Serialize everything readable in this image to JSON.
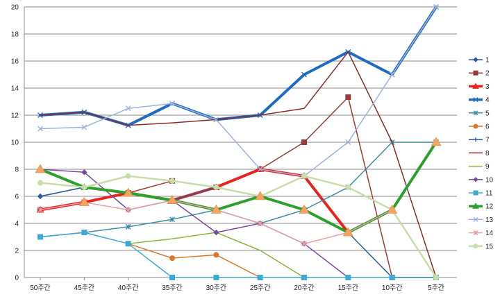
{
  "chart_data": {
    "type": "line",
    "categories": [
      "50주간",
      "45주간",
      "40주간",
      "35주간",
      "30주간",
      "25주간",
      "20주간",
      "15주간",
      "10주간",
      "5주간"
    ],
    "ylim": [
      0,
      20
    ],
    "yticks": [
      0,
      2,
      4,
      6,
      8,
      10,
      12,
      14,
      16,
      18,
      20
    ],
    "grid": true,
    "legend_position": "right",
    "series": [
      {
        "name": "1",
        "color": "#2E5C9E",
        "marker": "diamond",
        "width": 1.5,
        "values": [
          6,
          6.67,
          6.25,
          5.71,
          6.67,
          6,
          7.5,
          3.33,
          0,
          0
        ]
      },
      {
        "name": "2",
        "color": "#9B3A36",
        "marker": "square",
        "width": 1.5,
        "values": [
          5,
          5.56,
          6.25,
          7.14,
          6.67,
          8,
          10,
          13.33,
          0,
          0
        ]
      },
      {
        "name": "3",
        "color": "#E8231F",
        "marker": "triangle",
        "width": 4,
        "values": [
          5,
          5.56,
          6.25,
          5.71,
          6.67,
          8,
          7.5,
          3.33,
          null,
          null
        ]
      },
      {
        "name": "4",
        "color": "#1F6BC0",
        "marker": "x",
        "width": 4,
        "values": [
          12,
          12.22,
          11.25,
          12.86,
          11.67,
          12,
          15,
          16.67,
          15,
          20
        ]
      },
      {
        "name": "5",
        "color": "#3A8DA8",
        "marker": "star",
        "width": 1.5,
        "values": [
          3,
          3.33,
          3.75,
          4.29,
          5,
          4,
          5,
          6.67,
          10,
          10
        ]
      },
      {
        "name": "6",
        "color": "#D67A2A",
        "marker": "circle",
        "width": 1.5,
        "values": [
          null,
          null,
          2.5,
          1.43,
          1.67,
          0,
          null,
          null,
          null,
          null
        ]
      },
      {
        "name": "7",
        "color": "#2E5C9E",
        "marker": "plus",
        "width": 1.5,
        "values": [
          6,
          6.67,
          6.25,
          5.71,
          6.67,
          6,
          7.5,
          null,
          null,
          null
        ]
      },
      {
        "name": "8",
        "color": "#8B2A2A",
        "marker": "none",
        "width": 1.5,
        "values": [
          12,
          12.22,
          11.25,
          11.43,
          11.67,
          12,
          12.5,
          16.67,
          10,
          0
        ]
      },
      {
        "name": "9",
        "color": "#8DB53C",
        "marker": "none",
        "width": 1.5,
        "values": [
          null,
          null,
          2.5,
          2.86,
          3.33,
          2,
          0,
          null,
          null,
          null
        ]
      },
      {
        "name": "10",
        "color": "#7A4A9E",
        "marker": "diamond",
        "width": 1.5,
        "values": [
          8,
          7.78,
          5,
          5.71,
          3.33,
          4,
          2.5,
          0,
          null,
          null
        ]
      },
      {
        "name": "11",
        "color": "#3FA9D4",
        "marker": "square",
        "width": 1.5,
        "values": [
          3,
          3.33,
          2.5,
          0,
          0,
          0,
          0,
          0,
          0,
          0
        ]
      },
      {
        "name": "12",
        "color": "#2CA02C",
        "marker": "triangle",
        "width": 4,
        "values": [
          8,
          6.67,
          6.25,
          5.71,
          5,
          6,
          5,
          3.33,
          5,
          10
        ]
      },
      {
        "name": "13",
        "color": "#9DB4DC",
        "marker": "x",
        "width": 1.5,
        "values": [
          11,
          11.11,
          12.5,
          12.86,
          11.67,
          8,
          7.5,
          10,
          15,
          20
        ]
      },
      {
        "name": "14",
        "color": "#E6A0A0",
        "marker": "star",
        "width": 1.5,
        "values": [
          5,
          5.56,
          5,
          5.71,
          5,
          4,
          2.5,
          3.33,
          5,
          0
        ]
      },
      {
        "name": "15",
        "color": "#C8DDA8",
        "marker": "circle",
        "width": 2.5,
        "values": [
          7,
          6.67,
          7.5,
          7.14,
          6.67,
          6,
          7.5,
          6.67,
          5,
          0
        ]
      }
    ],
    "overlay": {
      "color": "#F4A460",
      "values": [
        8,
        5.56,
        6.25,
        5.71,
        5,
        6,
        5,
        3.33,
        5,
        10
      ]
    }
  }
}
